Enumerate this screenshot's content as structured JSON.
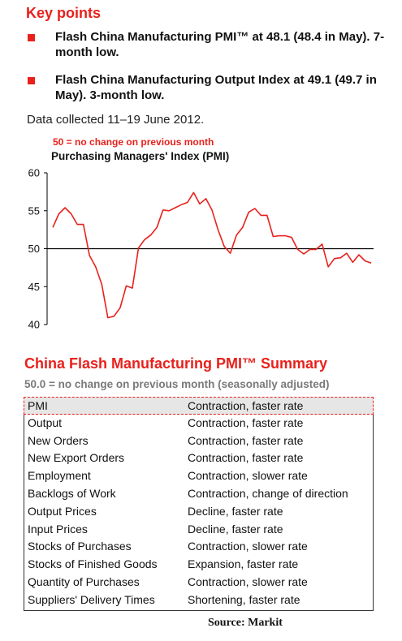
{
  "key_points": {
    "title": "Key points",
    "bullets": [
      "Flash China Manufacturing PMI™ at 48.1 (48.4 in May). 7-month low.",
      "Flash China Manufacturing Output Index at 49.1 (49.7 in May). 3-month low."
    ],
    "data_collected": "Data collected 11–19 June 2012."
  },
  "chart_data": {
    "type": "line",
    "note": "50 =  no change on previous month",
    "title": "Purchasing Managers' Index (PMI)",
    "xlabel": "",
    "ylabel": "",
    "ylim": [
      40,
      60
    ],
    "yticks": [
      "60",
      "55",
      "50",
      "45",
      "40"
    ],
    "reference_line": 50,
    "series_color": "#e8211c",
    "series": [
      {
        "values": [
          52.8,
          54.6,
          55.4,
          54.6,
          53.2,
          53.2,
          49.1,
          47.6,
          45.3,
          40.9,
          41.1,
          42.2,
          45.1,
          44.8,
          50.1,
          51.2,
          51.8,
          52.8,
          55.1,
          55.0,
          55.4,
          55.8,
          56.1,
          57.4,
          55.9,
          56.6,
          55.1,
          52.5,
          50.3,
          49.4,
          51.8,
          52.8,
          54.8,
          55.3,
          54.4,
          54.4,
          51.6,
          51.7,
          51.7,
          51.5,
          49.9,
          49.3,
          49.9,
          49.9,
          50.6,
          47.6,
          48.7,
          48.8,
          49.4,
          48.2,
          49.2,
          48.4,
          48.1
        ]
      }
    ]
  },
  "summary": {
    "title": "China Flash Manufacturing PMI™ Summary",
    "subtitle": "50.0 = no change on previous month (seasonally adjusted)",
    "rows": [
      {
        "label": "PMI",
        "value": "Contraction, faster rate"
      },
      {
        "label": "Output",
        "value": "Contraction, faster rate"
      },
      {
        "label": "New Orders",
        "value": "Contraction, faster rate"
      },
      {
        "label": "New Export Orders",
        "value": "Contraction, faster rate"
      },
      {
        "label": "Employment",
        "value": "Contraction, slower rate"
      },
      {
        "label": "Backlogs of Work",
        "value": "Contraction, change of direction"
      },
      {
        "label": "Output Prices",
        "value": "Decline, faster rate"
      },
      {
        "label": "Input Prices",
        "value": "Decline, faster rate"
      },
      {
        "label": "Stocks of Purchases",
        "value": "Contraction, slower rate"
      },
      {
        "label": "Stocks of Finished Goods",
        "value": "Expansion, faster rate"
      },
      {
        "label": "Quantity of Purchases",
        "value": "Contraction, slower rate"
      },
      {
        "label": "Suppliers' Delivery Times",
        "value": "Shortening, faster rate"
      }
    ]
  },
  "source": "Source:  Markit"
}
